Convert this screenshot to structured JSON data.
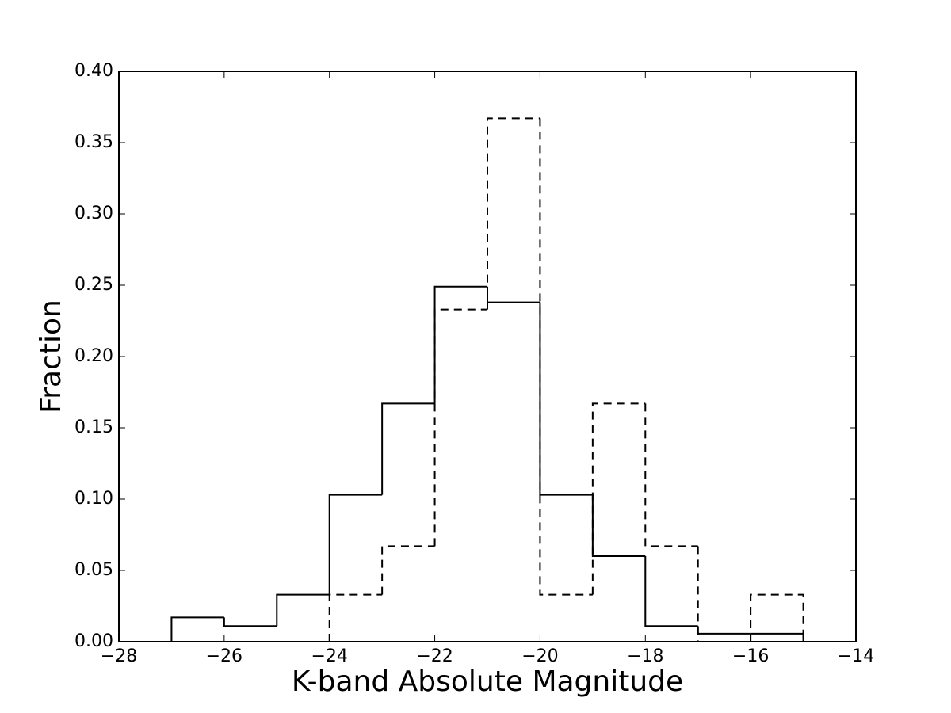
{
  "chart_data": {
    "type": "histogram",
    "xlabel": "K-band Absolute Magnitude",
    "ylabel": "Fraction",
    "xlim": [
      -28,
      -14
    ],
    "xticks": [
      {
        "value": -28,
        "label": "−28"
      },
      {
        "value": -26,
        "label": "−26"
      },
      {
        "value": -24,
        "label": "−24"
      },
      {
        "value": -22,
        "label": "−22"
      },
      {
        "value": -20,
        "label": "−20"
      },
      {
        "value": -18,
        "label": "−18"
      },
      {
        "value": -16,
        "label": "−16"
      },
      {
        "value": -14,
        "label": "−14"
      }
    ],
    "ylim": [
      0,
      0.4
    ],
    "yticks": [
      {
        "value": 0,
        "label": "0.00"
      },
      0.05,
      {
        "value": 0.1,
        "label": "0.10"
      },
      0.15,
      {
        "value": 0.2,
        "label": "0.20"
      },
      0.25,
      {
        "value": 0.3,
        "label": "0.30"
      },
      0.35,
      {
        "value": 0.4,
        "label": "0.40"
      }
    ],
    "series": [
      {
        "color": "#000000",
        "linestyle": "solid",
        "bins": [
          -27,
          -26,
          -25,
          -24,
          -23,
          -22,
          -21,
          -20,
          -19,
          -18,
          -17,
          -16,
          -15
        ],
        "values": [
          0.017,
          0.011,
          0.033,
          0.103,
          0.167,
          0.249,
          0.238,
          0.103,
          0.06,
          0.011,
          0.0056,
          0.0056
        ]
      },
      {
        "color": "#000000",
        "linestyle": "dashed",
        "bins": [
          -24,
          -23,
          -22,
          -21,
          -20,
          -19,
          -18,
          -17,
          -16,
          -15
        ],
        "values": [
          0.033,
          0.067,
          0.233,
          0.367,
          0.033,
          0.167,
          0.067,
          0,
          0.033
        ]
      }
    ]
  }
}
